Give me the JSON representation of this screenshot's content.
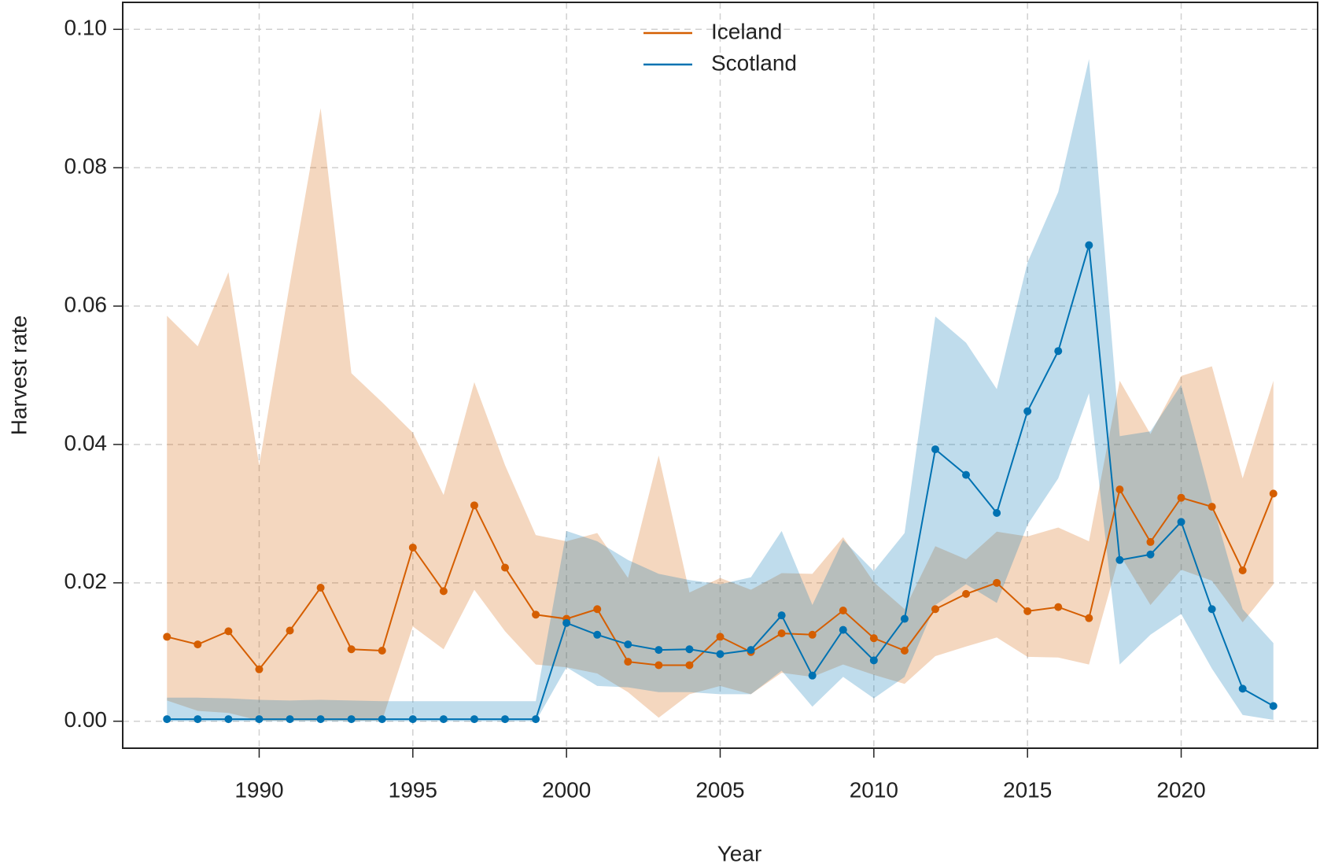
{
  "chart_data": {
    "type": "line",
    "xlabel": "Year",
    "ylabel": "Harvest rate",
    "x": [
      1987,
      1988,
      1989,
      1990,
      1991,
      1992,
      1993,
      1994,
      1995,
      1996,
      1997,
      1998,
      1999,
      2000,
      2001,
      2002,
      2003,
      2004,
      2005,
      2006,
      2007,
      2008,
      2009,
      2010,
      2011,
      2012,
      2013,
      2014,
      2015,
      2016,
      2017,
      2018,
      2019,
      2020,
      2021,
      2022,
      2023
    ],
    "series": [
      {
        "name": "Iceland",
        "color": "#D55E00",
        "values": [
          0.0122,
          0.0111,
          0.013,
          0.0075,
          0.0131,
          0.0193,
          0.0104,
          0.0102,
          0.0251,
          0.0188,
          0.0312,
          0.0222,
          0.0154,
          0.0148,
          0.0162,
          0.0086,
          0.0081,
          0.0081,
          0.0122,
          0.01,
          0.0127,
          0.0125,
          0.016,
          0.012,
          0.0102,
          0.0162,
          0.0184,
          0.02,
          0.0159,
          0.0165,
          0.0149,
          0.0335,
          0.0259,
          0.0323,
          0.031,
          0.0218,
          0.0329
        ],
        "lower": [
          0.003,
          0.0015,
          0.0012,
          0.0001,
          0.0001,
          0.0001,
          0.0001,
          0.0001,
          0.0137,
          0.0104,
          0.019,
          0.013,
          0.0082,
          0.0078,
          0.0069,
          0.0042,
          0.0005,
          0.0039,
          0.0051,
          0.0039,
          0.007,
          0.0064,
          0.0082,
          0.0067,
          0.0054,
          0.0094,
          0.0108,
          0.0121,
          0.0093,
          0.0092,
          0.0082,
          0.0241,
          0.0168,
          0.0219,
          0.0203,
          0.0143,
          0.0198
        ],
        "upper": [
          0.0586,
          0.0542,
          0.0649,
          0.037,
          0.0633,
          0.0886,
          0.0503,
          0.0461,
          0.0417,
          0.0327,
          0.049,
          0.037,
          0.0269,
          0.026,
          0.0272,
          0.0207,
          0.0384,
          0.0186,
          0.0207,
          0.019,
          0.0214,
          0.0213,
          0.0266,
          0.0201,
          0.0162,
          0.0253,
          0.0234,
          0.0274,
          0.0267,
          0.028,
          0.026,
          0.0492,
          0.0415,
          0.0499,
          0.0513,
          0.0351,
          0.0492
        ]
      },
      {
        "name": "Scotland",
        "color": "#0072B2",
        "values": [
          0.0003,
          0.0003,
          0.0003,
          0.0003,
          0.0003,
          0.0003,
          0.0003,
          0.0003,
          0.0003,
          0.0003,
          0.0003,
          0.0003,
          0.0003,
          0.0142,
          0.0125,
          0.0111,
          0.0103,
          0.0104,
          0.0097,
          0.0103,
          0.0153,
          0.0066,
          0.0132,
          0.0088,
          0.0148,
          0.0393,
          0.0356,
          0.0301,
          0.0448,
          0.0535,
          0.0688,
          0.0233,
          0.0241,
          0.0288,
          0.0162,
          0.0047,
          0.0022
        ],
        "lower": [
          0,
          0,
          0,
          0,
          0,
          0,
          0,
          0,
          0,
          0,
          0,
          0,
          0,
          0.0078,
          0.0051,
          0.0049,
          0.0042,
          0.0042,
          0.0039,
          0.0039,
          0.0073,
          0.0021,
          0.0064,
          0.0033,
          0.0064,
          0.0168,
          0.0198,
          0.0171,
          0.0284,
          0.0351,
          0.0474,
          0.0082,
          0.0125,
          0.0155,
          0.0076,
          0.0009,
          0.0002
        ],
        "upper": [
          0.0034,
          0.0034,
          0.0033,
          0.0031,
          0.003,
          0.0031,
          0.003,
          0.0029,
          0.0029,
          0.0029,
          0.0029,
          0.0029,
          0.0029,
          0.0275,
          0.026,
          0.0233,
          0.0213,
          0.0204,
          0.0198,
          0.0208,
          0.0275,
          0.0168,
          0.0262,
          0.0217,
          0.0272,
          0.0585,
          0.0547,
          0.048,
          0.0663,
          0.0765,
          0.0957,
          0.0412,
          0.0419,
          0.0486,
          0.0317,
          0.0162,
          0.0113
        ]
      }
    ],
    "xlim": [
      1985.56,
      2024.44
    ],
    "xticks": [
      1990,
      1995,
      2000,
      2005,
      2010,
      2015,
      2020
    ],
    "ylim": [
      -0.0039,
      0.1039
    ],
    "yticks": [
      {
        "value": 0,
        "label": "0.00"
      },
      {
        "value": 0.02,
        "label": "0.02"
      },
      {
        "value": 0.04,
        "label": "0.04"
      },
      {
        "value": 0.06,
        "label": "0.06"
      },
      {
        "value": 0.08,
        "label": "0.08"
      },
      {
        "value": 0.1,
        "label": "0.10"
      }
    ],
    "grid": true,
    "legend": "top"
  }
}
